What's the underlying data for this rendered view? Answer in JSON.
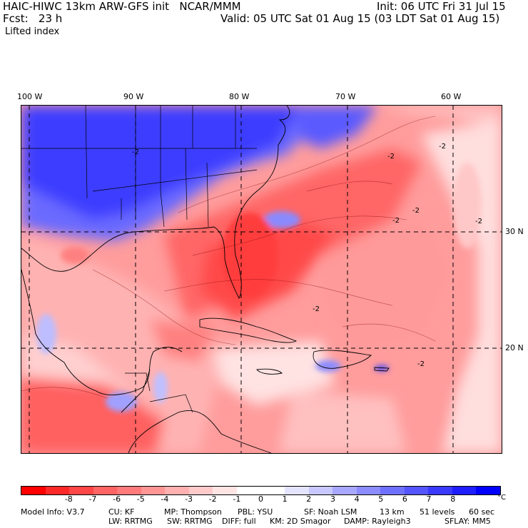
{
  "header": {
    "title": "HAIC-HIWC 13km ARW-GFS init   NCAR/MMM",
    "init": "Init: 06 UTC Fri 31 Jul 15",
    "fcst": "Fcst:   23 h",
    "valid": "Valid: 05 UTC Sat 01 Aug 15 (03 LDT Sat 01 Aug 15)",
    "field": "Lifted index"
  },
  "map": {
    "lon_labels": [
      "100 W",
      "90 W",
      "80 W",
      "70 W",
      "60 W"
    ],
    "lat_labels": [
      "30 N",
      "20 N"
    ],
    "contour_labels": [
      "-2",
      "-2",
      "-2",
      "-2",
      "-2",
      "-2",
      "-2",
      "-2"
    ]
  },
  "colorbar": {
    "colors": [
      "#ff0000",
      "#ff2828",
      "#ff4646",
      "#ff6464",
      "#ff7a7a",
      "#ff9696",
      "#ffb0b0",
      "#ffcaca",
      "#ffe4e4",
      "#ffffff",
      "#ffffff",
      "#e4e4ff",
      "#c8c8ff",
      "#a8a8ff",
      "#8c8cff",
      "#7070ff",
      "#5555ff",
      "#3a3aff",
      "#1e1eff",
      "#0000ff"
    ],
    "ticks": [
      "-8",
      "-7",
      "-6",
      "-5",
      "-4",
      "-3",
      "-2",
      "-1",
      "0",
      "1",
      "2",
      "3",
      "4",
      "5",
      "6",
      "7",
      "8"
    ],
    "unit": "°C"
  },
  "model_info": {
    "line1": [
      "Model Info: V3.7",
      "CU: KF",
      "MP: Thompson",
      "PBL: YSU",
      "SF: Noah LSM",
      "13 km",
      "51 levels",
      "60 sec"
    ],
    "line2": [
      "LW: RRTMG",
      "SW: RRTMG",
      "DIFF: full",
      "KM: 2D Smagor",
      "DAMP: Rayleigh3",
      "SFLAY: MM5"
    ]
  }
}
